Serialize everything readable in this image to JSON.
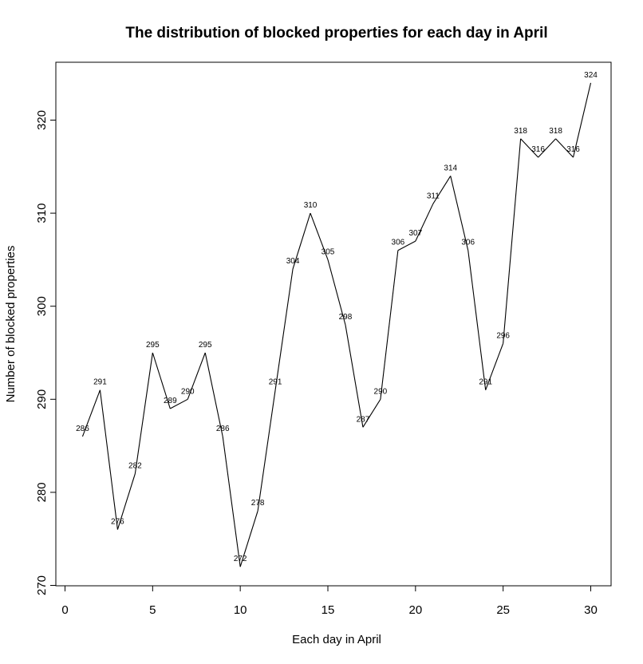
{
  "chart_data": {
    "type": "line",
    "title": "The distribution of blocked properties for each day in April",
    "xlabel": "Each day in April",
    "ylabel": "Number of blocked properties",
    "x": [
      1,
      2,
      3,
      4,
      5,
      6,
      7,
      8,
      9,
      10,
      11,
      12,
      13,
      14,
      15,
      16,
      17,
      18,
      19,
      20,
      21,
      22,
      23,
      24,
      25,
      26,
      27,
      28,
      29,
      30
    ],
    "series": [
      {
        "name": "",
        "values": [
          286,
          291,
          276,
          282,
          295,
          289,
          290,
          295,
          286,
          272,
          278,
          291,
          304,
          310,
          305,
          298,
          287,
          290,
          306,
          307,
          311,
          314,
          306,
          291,
          296,
          318,
          316,
          318,
          316,
          324
        ],
        "data_labels": [
          "286",
          "291",
          "276",
          "282",
          "295",
          "289",
          "290",
          "295",
          "286",
          "272",
          "278",
          "291",
          "304",
          "310",
          "305",
          "298",
          "287",
          "290",
          "306",
          "307",
          "311",
          "314",
          "306",
          "291",
          "296",
          "318",
          "316",
          "318",
          "316",
          "324"
        ]
      }
    ],
    "xlim": [
      0,
      30
    ],
    "ylim": [
      270,
      324
    ],
    "x_ticks": [
      0,
      5,
      10,
      15,
      20,
      25,
      30
    ],
    "x_tick_labels": [
      "0",
      "5",
      "10",
      "15",
      "20",
      "25",
      "30"
    ],
    "y_ticks": [
      270,
      280,
      290,
      300,
      310,
      320
    ],
    "y_tick_labels": [
      "270",
      "280",
      "290",
      "300",
      "310",
      "320"
    ],
    "grid": false,
    "legend": "none",
    "colors": {
      "line": "#000000",
      "text": "#000000",
      "background": "#ffffff"
    }
  }
}
